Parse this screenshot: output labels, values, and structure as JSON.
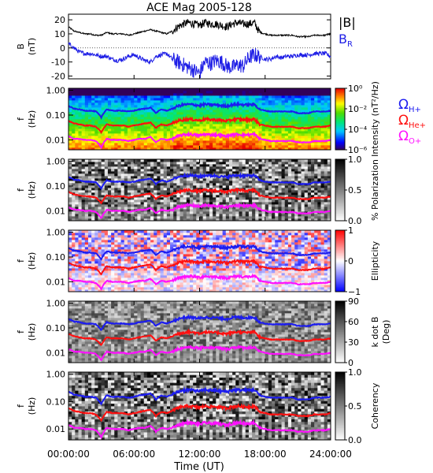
{
  "title": "ACE Mag 2005-128",
  "x_axis": {
    "label": "Time (UT)",
    "tick_labels": [
      "00:00:00",
      "06:00:00",
      "12:00:00",
      "18:00:00",
      "24:00:00"
    ],
    "tick_hours": [
      0,
      6,
      12,
      18,
      24
    ],
    "range_hours": [
      0,
      24
    ]
  },
  "legend": {
    "field": {
      "magnitude": "|B|",
      "radial_base": "B",
      "radial_sub": "R"
    },
    "gyro": [
      {
        "base": "Ω",
        "sub": "H+"
      },
      {
        "base": "Ω",
        "sub": "He+"
      },
      {
        "base": "Ω",
        "sub": "O+"
      }
    ]
  },
  "colors": {
    "magnitude": "#000000",
    "radial": "#1e1ee6",
    "h_plus": "#1c1cf0",
    "he_plus": "#ff1010",
    "o_plus": "#ff10ff"
  },
  "chart_data": {
    "type": "line",
    "panels": [
      {
        "id": "field",
        "ylabel": "B (nT)",
        "ylabel_lines": [
          "B",
          "(nT)"
        ],
        "ylim": [
          -22,
          24
        ],
        "ytick_labels": [
          "20",
          "10",
          "0",
          "-10",
          "-20"
        ],
        "ytick_values": [
          20,
          10,
          0,
          -10,
          -20
        ],
        "series": [
          {
            "name": "|B|",
            "x_hours": [
              0,
              0.5,
              1,
              1.5,
              2,
              2.5,
              3,
              3.5,
              4,
              4.5,
              5,
              5.5,
              6,
              6.5,
              7,
              7.5,
              8,
              8.5,
              9,
              9.5,
              10,
              10.5,
              11,
              11.5,
              12,
              12.5,
              13,
              13.5,
              14,
              14.5,
              15,
              15.5,
              16,
              16.5,
              17,
              17.5,
              18,
              18.5,
              19,
              19.5,
              20,
              20.5,
              21,
              21.5,
              22,
              22.5,
              23,
              23.5,
              24
            ],
            "values": [
              15,
              12,
              11,
              10,
              10,
              9,
              9,
              11,
              10,
              10,
              10,
              9,
              10,
              11,
              12,
              13,
              12,
              11,
              10,
              12,
              15,
              17,
              18,
              17,
              16,
              18,
              17,
              17,
              16,
              15,
              17,
              18,
              17,
              17,
              18,
              11,
              10,
              9,
              9,
              9,
              9,
              9,
              8,
              8,
              8,
              9,
              9,
              9,
              10
            ]
          },
          {
            "name": "B_R",
            "x_hours": [
              0,
              0.5,
              1,
              1.5,
              2,
              2.5,
              3,
              3.5,
              4,
              4.5,
              5,
              5.5,
              6,
              6.5,
              7,
              7.5,
              8,
              8.5,
              9,
              9.5,
              10,
              10.5,
              11,
              11.5,
              12,
              12.5,
              13,
              13.5,
              14,
              14.5,
              15,
              15.5,
              16,
              16.5,
              17,
              17.5,
              18,
              18.5,
              19,
              19.5,
              20,
              20.5,
              21,
              21.5,
              22,
              22.5,
              23,
              23.5,
              24
            ],
            "values": [
              3,
              0,
              -3,
              -4,
              -4,
              -5,
              -6,
              -6,
              -8,
              -9,
              -8,
              -6,
              -5,
              -7,
              -9,
              -10,
              -6,
              -5,
              -4,
              -8,
              -10,
              -12,
              -14,
              -16,
              -18,
              -10,
              -11,
              -9,
              -10,
              -13,
              -14,
              -12,
              -13,
              -7,
              -5,
              -6,
              -8,
              -8,
              -6,
              -7,
              -6,
              -6,
              -5,
              -5,
              -5,
              -4,
              -4,
              -4,
              -6
            ]
          }
        ]
      },
      {
        "id": "power",
        "ylabel_lines": [
          "f",
          "(Hz)"
        ],
        "ylim_hz": [
          0.004,
          1.2
        ],
        "ytick_labels": [
          "1.00",
          "0.10",
          "0.01"
        ],
        "ytick_values": [
          1,
          0.1,
          0.01
        ],
        "colorbar": {
          "label": "Intensity (nT²/Hz)",
          "scale": "log",
          "range": [
            1e-06,
            1
          ],
          "tick_labels": [
            "10⁰",
            "10⁻²",
            "10⁻⁴",
            "10⁻⁶"
          ],
          "tick_values": [
            1,
            0.01,
            0.0001,
            1e-06
          ],
          "colormap": "rainbow"
        }
      },
      {
        "id": "polarization",
        "ylabel_lines": [
          "f",
          "(Hz)"
        ],
        "ylim_hz": [
          0.004,
          1.2
        ],
        "ytick_labels": [
          "1.00",
          "0.10",
          "0.01"
        ],
        "ytick_values": [
          1,
          0.1,
          0.01
        ],
        "colorbar": {
          "label": "% Polarization",
          "scale": "linear",
          "range": [
            0,
            1
          ],
          "tick_labels": [
            "1.0",
            "0.5",
            "0.0"
          ],
          "tick_values": [
            1,
            0.5,
            0
          ],
          "colormap": "gray"
        }
      },
      {
        "id": "ellipticity",
        "ylabel_lines": [
          "f",
          "(Hz)"
        ],
        "ylim_hz": [
          0.004,
          1.2
        ],
        "ytick_labels": [
          "1.00",
          "0.10",
          "0.01"
        ],
        "ytick_values": [
          1,
          0.1,
          0.01
        ],
        "colorbar": {
          "label": "Ellipticity",
          "scale": "linear",
          "range": [
            -1,
            1
          ],
          "tick_labels": [
            "1",
            "0",
            "−1"
          ],
          "tick_values": [
            1,
            0,
            -1
          ],
          "colormap": "blue-white-red"
        }
      },
      {
        "id": "kdotb",
        "ylabel_lines": [
          "f",
          "(Hz)"
        ],
        "ylim_hz": [
          0.004,
          1.2
        ],
        "ytick_labels": [
          "1.00",
          "0.10",
          "0.01"
        ],
        "ytick_values": [
          1,
          0.1,
          0.01
        ],
        "colorbar": {
          "label": "k dot B (Deg)",
          "label_lines": [
            "k dot B",
            "(Deg)"
          ],
          "scale": "linear",
          "range": [
            0,
            90
          ],
          "tick_labels": [
            "90",
            "60",
            "30",
            "0"
          ],
          "tick_values": [
            90,
            60,
            30,
            0
          ],
          "colormap": "gray"
        }
      },
      {
        "id": "coherency",
        "ylabel_lines": [
          "f",
          "(Hz)"
        ],
        "ylim_hz": [
          0.004,
          1.2
        ],
        "ytick_labels": [
          "1.00",
          "0.10",
          "0.01"
        ],
        "ytick_values": [
          1,
          0.1,
          0.01
        ],
        "colorbar": {
          "label": "Coherency",
          "scale": "linear",
          "range": [
            0,
            1
          ],
          "tick_labels": [
            "1.0",
            "0.5",
            "0.0"
          ],
          "tick_values": [
            1,
            0.5,
            0
          ],
          "colormap": "gray"
        }
      }
    ],
    "gyrofrequency_lines": {
      "x_hours": [
        0,
        0.5,
        1,
        1.5,
        2,
        2.5,
        3,
        3.5,
        4,
        4.5,
        5,
        5.5,
        6,
        6.5,
        7,
        7.5,
        8,
        8.5,
        9,
        9.5,
        10,
        10.5,
        11,
        11.5,
        12,
        12.5,
        13,
        13.5,
        14,
        14.5,
        15,
        15.5,
        16,
        16.5,
        17,
        17.5,
        18,
        18.5,
        19,
        19.5,
        20,
        20.5,
        21,
        21.5,
        22,
        22.5,
        23,
        23.5,
        24
      ],
      "h_plus_hz": [
        0.23,
        0.18,
        0.17,
        0.15,
        0.15,
        0.14,
        0.08,
        0.17,
        0.15,
        0.15,
        0.15,
        0.14,
        0.15,
        0.17,
        0.18,
        0.2,
        0.12,
        0.17,
        0.15,
        0.18,
        0.23,
        0.26,
        0.27,
        0.26,
        0.24,
        0.27,
        0.26,
        0.26,
        0.24,
        0.23,
        0.26,
        0.27,
        0.26,
        0.26,
        0.27,
        0.17,
        0.15,
        0.14,
        0.14,
        0.14,
        0.14,
        0.14,
        0.12,
        0.12,
        0.12,
        0.14,
        0.14,
        0.14,
        0.15
      ],
      "he_plus_hz": [
        0.058,
        0.046,
        0.042,
        0.038,
        0.038,
        0.034,
        0.02,
        0.042,
        0.038,
        0.038,
        0.038,
        0.034,
        0.038,
        0.042,
        0.046,
        0.05,
        0.03,
        0.042,
        0.038,
        0.046,
        0.058,
        0.065,
        0.069,
        0.065,
        0.061,
        0.069,
        0.065,
        0.065,
        0.061,
        0.058,
        0.065,
        0.069,
        0.065,
        0.065,
        0.069,
        0.042,
        0.038,
        0.034,
        0.034,
        0.034,
        0.034,
        0.034,
        0.03,
        0.03,
        0.03,
        0.034,
        0.034,
        0.034,
        0.038
      ],
      "o_plus_hz": [
        0.014,
        0.011,
        0.011,
        0.01,
        0.01,
        0.009,
        0.005,
        0.011,
        0.01,
        0.01,
        0.01,
        0.009,
        0.01,
        0.011,
        0.011,
        0.013,
        0.008,
        0.011,
        0.01,
        0.011,
        0.014,
        0.016,
        0.017,
        0.016,
        0.015,
        0.017,
        0.016,
        0.016,
        0.015,
        0.014,
        0.016,
        0.017,
        0.016,
        0.016,
        0.017,
        0.011,
        0.01,
        0.009,
        0.009,
        0.009,
        0.009,
        0.009,
        0.008,
        0.008,
        0.008,
        0.009,
        0.009,
        0.009,
        0.01
      ]
    }
  }
}
